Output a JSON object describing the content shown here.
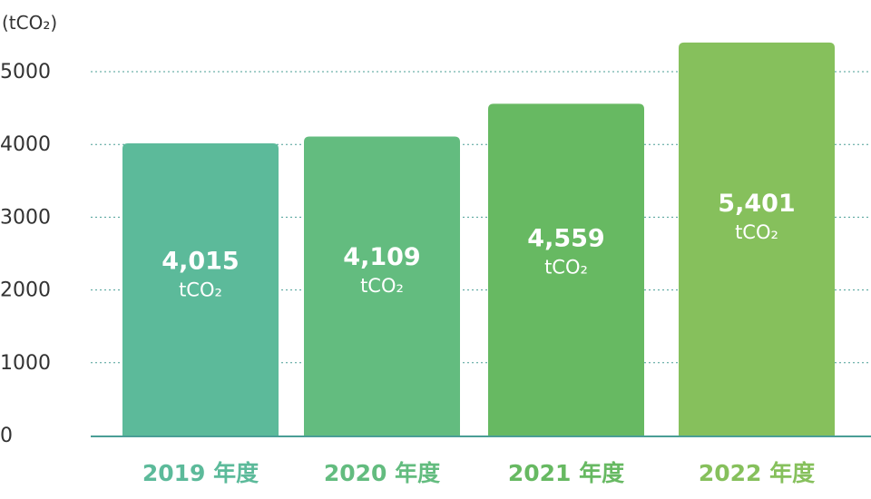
{
  "chart_data": {
    "type": "bar",
    "ylabel": "(tCO₂)",
    "ylim": [
      0,
      5400
    ],
    "yticks": [
      0,
      1000,
      2000,
      3000,
      4000,
      5000
    ],
    "grid": true,
    "categories": [
      "2019 年度",
      "2020 年度",
      "2021 年度",
      "2022 年度"
    ],
    "values": [
      4015,
      4109,
      4559,
      5401
    ],
    "value_labels": [
      "4,015",
      "4,109",
      "4,559",
      "5,401"
    ],
    "unit_label": "tCO₂",
    "colors": [
      "#5cba9a",
      "#63bc7f",
      "#67b962",
      "#86c05c"
    ],
    "label_colors": [
      "#5cba9a",
      "#63bc7f",
      "#67b962",
      "#86c05c"
    ],
    "axis_color": "#4a9e96",
    "grid_color": "#4a9e96"
  }
}
